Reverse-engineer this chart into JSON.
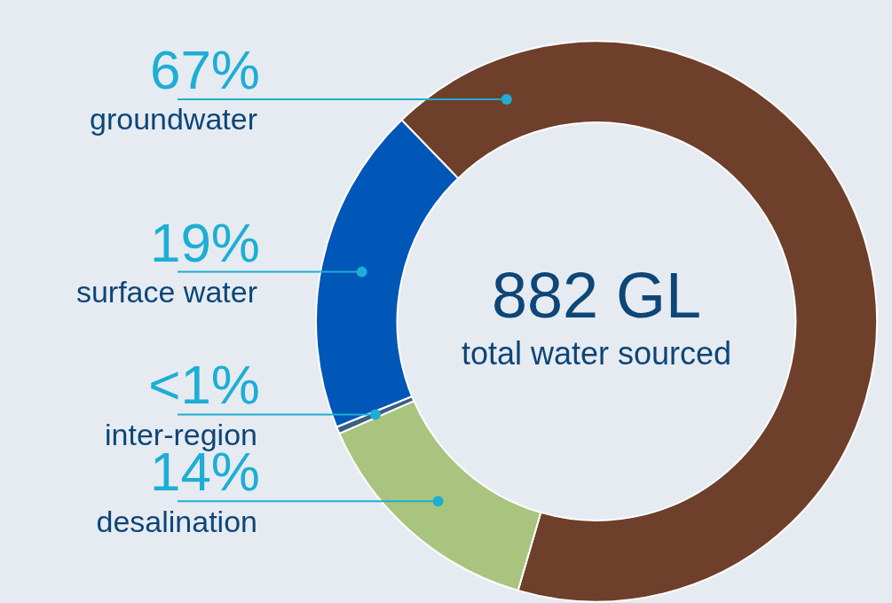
{
  "chart_data": {
    "type": "donut",
    "categories": [
      "groundwater",
      "desalination",
      "inter-region",
      "surface water"
    ],
    "values": [
      67,
      14,
      0.4,
      19
    ],
    "value_labels": [
      "67%",
      "14%",
      "<1%",
      "19%"
    ],
    "colors": [
      "#6e3f2a",
      "#a9c47f",
      "#3b5f86",
      "#0057b8"
    ],
    "annotations": [
      "882 GL",
      "total water sourced"
    ],
    "legend": false
  }
}
